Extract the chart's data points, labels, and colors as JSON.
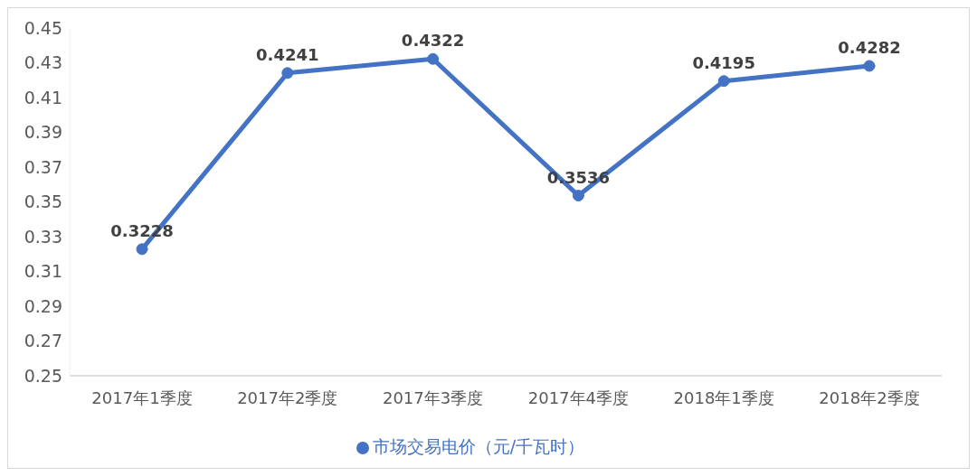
{
  "chart_data": {
    "type": "line",
    "categories": [
      "2017年1季度",
      "2017年2季度",
      "2017年3季度",
      "2017年4季度",
      "2018年1季度",
      "2018年2季度"
    ],
    "series": [
      {
        "name": "市场交易电价（元/千瓦时）",
        "color": "#4472c4",
        "values": [
          0.3228,
          0.4241,
          0.4322,
          0.3536,
          0.4195,
          0.4282
        ]
      }
    ],
    "ylim": [
      0.25,
      0.45
    ],
    "yticks": [
      0.25,
      0.27,
      0.29,
      0.31,
      0.33,
      0.35,
      0.37,
      0.39,
      0.41,
      0.43,
      0.45
    ],
    "data_labels": true,
    "legend": "bottom",
    "marker": "circle",
    "line_style": "solid",
    "grid": false
  }
}
